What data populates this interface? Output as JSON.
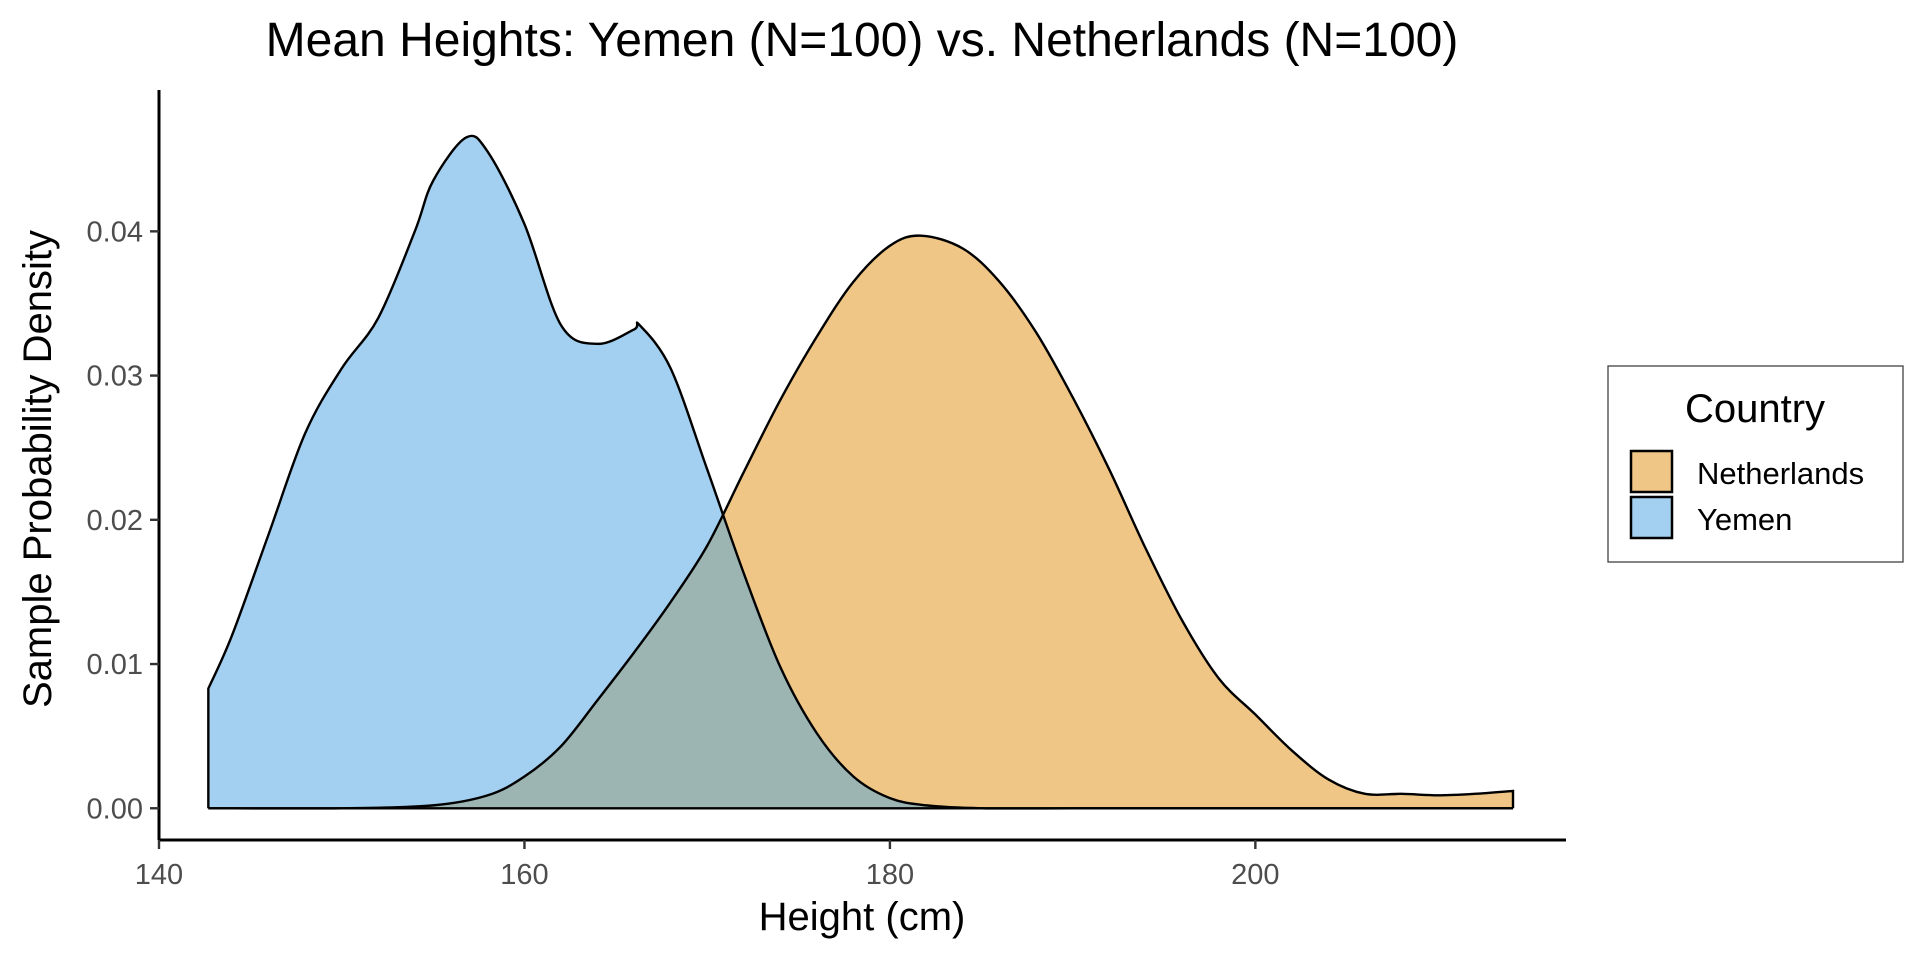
{
  "chart_data": {
    "type": "area",
    "title": "Mean Heights: Yemen (N=100) vs. Netherlands (N=100)",
    "xlabel": "Height (cm)",
    "ylabel": "Sample Probability Density",
    "xlim": [
      140,
      217
    ],
    "ylim": [
      -0.0022,
      0.0498
    ],
    "x_ticks": [
      140,
      160,
      180,
      200
    ],
    "x_tick_labels": [
      "140",
      "160",
      "180",
      "200"
    ],
    "y_ticks": [
      0,
      0.01,
      0.02,
      0.03,
      0.04
    ],
    "y_tick_labels": [
      "0.00",
      "0.01",
      "0.02",
      "0.03",
      "0.04"
    ],
    "grid": false,
    "legend": {
      "title": "Country",
      "position": "right",
      "entries": [
        "Netherlands",
        "Yemen"
      ]
    },
    "overlap_color": "#9cb5b3",
    "series": [
      {
        "name": "Netherlands",
        "color": "#efc686",
        "x": [
          142.7,
          150,
          155,
          158,
          160,
          162,
          164,
          166,
          168,
          170,
          172,
          174,
          176,
          178,
          180,
          181.7,
          184,
          186,
          188,
          190,
          192,
          194,
          196,
          198,
          200,
          202,
          204,
          206,
          208,
          210,
          212,
          214.1
        ],
        "y": [
          0.0,
          0.0,
          0.0002,
          0.0009,
          0.0022,
          0.0043,
          0.0075,
          0.0108,
          0.0143,
          0.0182,
          0.0233,
          0.0283,
          0.0327,
          0.0365,
          0.039,
          0.0397,
          0.0388,
          0.0365,
          0.033,
          0.0285,
          0.0235,
          0.018,
          0.013,
          0.009,
          0.0065,
          0.004,
          0.002,
          0.001,
          0.001,
          0.0009,
          0.001,
          0.0012
        ]
      },
      {
        "name": "Yemen",
        "color": "#a3d0f0",
        "x": [
          142.7,
          144,
          146,
          148,
          150,
          152,
          154,
          155,
          156.8,
          158,
          160,
          162,
          164,
          166,
          166.3,
          168,
          170,
          172,
          174,
          176,
          178,
          180,
          182,
          185,
          190,
          200,
          214.1
        ],
        "y": [
          0.0083,
          0.012,
          0.019,
          0.026,
          0.0305,
          0.034,
          0.04,
          0.0435,
          0.0465,
          0.0455,
          0.0405,
          0.0335,
          0.0322,
          0.0332,
          0.0335,
          0.0305,
          0.0235,
          0.0163,
          0.0098,
          0.0052,
          0.0022,
          0.0007,
          0.0002,
          0.0,
          0.0,
          0.0,
          0.0
        ]
      }
    ]
  }
}
